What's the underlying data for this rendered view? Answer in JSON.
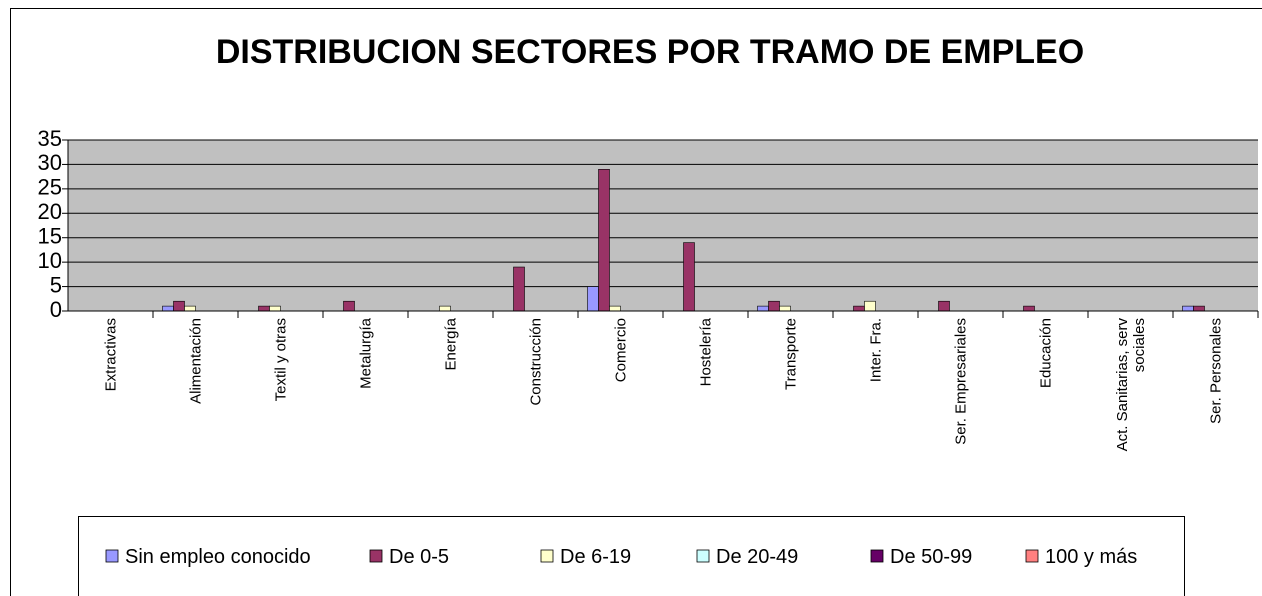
{
  "chart_data": {
    "type": "bar",
    "title": "DISTRIBUCION SECTORES POR TRAMO DE EMPLEO",
    "categories": [
      "Extractivas",
      "Alimentación",
      "Textil y otras",
      "Metalurgía",
      "Energía",
      "Construcción",
      "Comercio",
      "Hostelería",
      "Transporte",
      "Inter. Fra.",
      "Ser. Empresariales",
      "Educación",
      "Act. Sanitarias, serv sociales",
      "Ser. Personales"
    ],
    "series": [
      {
        "name": "Sin empleo conocido",
        "color": "#9999ff",
        "values": [
          0,
          1,
          0,
          0,
          0,
          0,
          5,
          0,
          1,
          0,
          0,
          0,
          0,
          1
        ]
      },
      {
        "name": "De 0-5",
        "color": "#993366",
        "values": [
          0,
          2,
          1,
          2,
          0,
          9,
          29,
          14,
          2,
          1,
          2,
          1,
          0,
          1
        ]
      },
      {
        "name": "De 6-19",
        "color": "#ffffcc",
        "values": [
          0,
          1,
          1,
          0,
          1,
          0,
          1,
          0,
          1,
          2,
          0,
          0,
          0,
          0
        ]
      },
      {
        "name": "De 20-49",
        "color": "#ccffff",
        "values": [
          0,
          0,
          0,
          0,
          0,
          0,
          0,
          0,
          0,
          0,
          0,
          0,
          0,
          0
        ]
      },
      {
        "name": "De 50-99",
        "color": "#660066",
        "values": [
          0,
          0,
          0,
          0,
          0,
          0,
          0,
          0,
          0,
          0,
          0,
          0,
          0,
          0
        ]
      },
      {
        "name": "100 y más",
        "color": "#ff8080",
        "values": [
          0,
          0,
          0,
          0,
          0,
          0,
          0,
          0,
          0,
          0,
          0,
          0,
          0,
          0
        ]
      }
    ],
    "ylim": [
      0,
      35
    ],
    "yticks": [
      0,
      5,
      10,
      15,
      20,
      25,
      30,
      35
    ],
    "grid": true,
    "legend": "bottom"
  }
}
